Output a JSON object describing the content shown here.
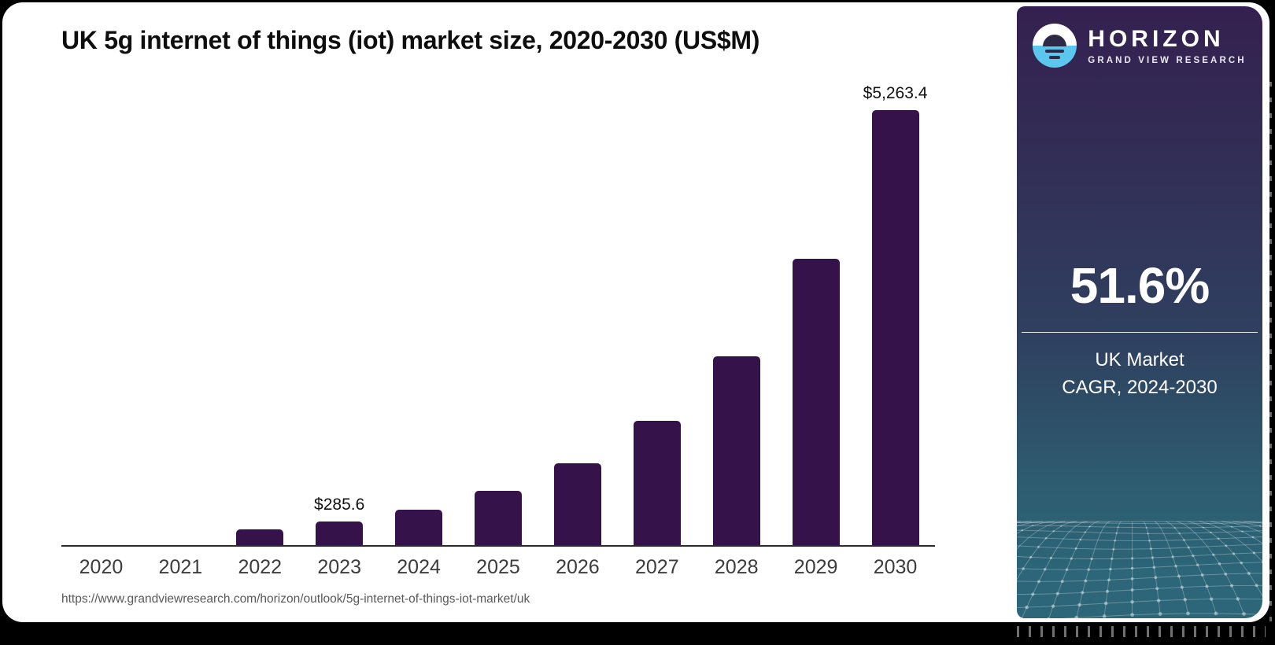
{
  "card": {
    "title": "UK 5g internet of things (iot) market size, 2020-2030 (US$M)",
    "source_url": "https://www.grandviewresearch.com/horizon/outlook/5g-internet-of-things-iot-market/uk"
  },
  "chart_data": {
    "type": "bar",
    "title": "UK 5g internet of things (iot) market size, 2020-2030 (US$M)",
    "unit": "US$M",
    "categories": [
      "2020",
      "2021",
      "2022",
      "2023",
      "2024",
      "2025",
      "2026",
      "2027",
      "2028",
      "2029",
      "2030"
    ],
    "values": [
      0,
      0,
      190,
      285.6,
      433,
      656,
      995,
      1509,
      2287,
      3467,
      5263.4
    ],
    "value_labels": [
      "",
      "",
      "",
      "$285.6",
      "",
      "",
      "",
      "",
      "",
      "",
      "$5,263.4"
    ],
    "ylim": [
      0,
      5263.4
    ],
    "grid": "off",
    "legend": "none",
    "bar_color": "#36124B",
    "note": "Only 2023 and 2030 carry data labels; other values estimated from bar heights (2020-2021 bars not visible, ~0)"
  },
  "side_panel": {
    "brand": {
      "logo_icon": "horizon-sunrise-logo",
      "name": "HORIZON",
      "subtitle": "GRAND VIEW RESEARCH"
    },
    "stat_value": "51.6%",
    "stat_caption_line1": "UK Market",
    "stat_caption_line2": "CAGR, 2024-2030",
    "colors": {
      "panel_top": "#342050",
      "panel_middle": "#2F4160",
      "panel_bottom": "#2C6678",
      "logo_blue": "#5BC6EE",
      "bar": "#36124B"
    }
  }
}
